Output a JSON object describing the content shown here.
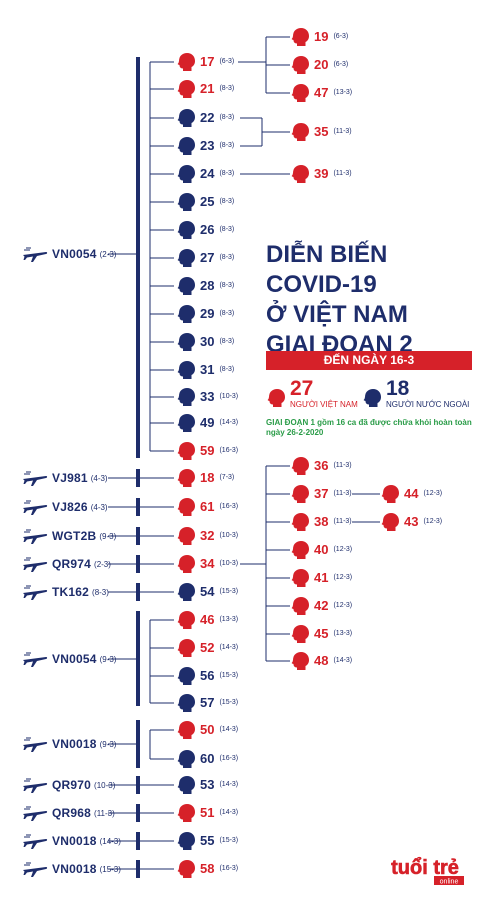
{
  "title": {
    "lines": [
      "DIỄN BIẾN",
      "COVID-19",
      "Ở VIỆT NAM",
      "GIAI ĐOẠN 2"
    ],
    "date_banner": "ĐẾN NGÀY 16-3"
  },
  "stats": {
    "vietnamese": {
      "count": "27",
      "label": "NGƯỜI VIỆT NAM"
    },
    "foreign": {
      "count": "18",
      "label": "NGƯỜI NƯỚC NGOÀI"
    }
  },
  "note": "GIAI ĐOẠN 1 gồm 16 ca đã được chữa khỏi hoàn toàn ngày 26-2-2020",
  "logo": {
    "main": "tuổi trẻ",
    "sub": "online"
  },
  "colors": {
    "vietnamese": "#d62129",
    "foreign": "#1e2d6b",
    "lines": "#1e2d6b",
    "note": "#2a9c48"
  },
  "flights": [
    {
      "code": "VN0054",
      "date": "(2-3)"
    },
    {
      "code": "VJ981",
      "date": "(4-3)"
    },
    {
      "code": "VJ826",
      "date": "(4-3)"
    },
    {
      "code": "WGT2B",
      "date": "(9-3)"
    },
    {
      "code": "QR974",
      "date": "(2-3)"
    },
    {
      "code": "TK162",
      "date": "(8-3)"
    },
    {
      "code": "VN0054",
      "date": "(9-3)"
    },
    {
      "code": "VN0018",
      "date": "(9-3)"
    },
    {
      "code": "QR970",
      "date": "(10-3)"
    },
    {
      "code": "QR968",
      "date": "(11-3)"
    },
    {
      "code": "VN0018",
      "date": "(14-3)"
    },
    {
      "code": "VN0018",
      "date": "(15-3)"
    }
  ],
  "cases": [
    {
      "id": "17",
      "date": "(6-3)",
      "type": "vn"
    },
    {
      "id": "21",
      "date": "(8-3)",
      "type": "vn"
    },
    {
      "id": "22",
      "date": "(8-3)",
      "type": "fr"
    },
    {
      "id": "23",
      "date": "(8-3)",
      "type": "fr"
    },
    {
      "id": "24",
      "date": "(8-3)",
      "type": "fr"
    },
    {
      "id": "25",
      "date": "(8-3)",
      "type": "fr"
    },
    {
      "id": "26",
      "date": "(8-3)",
      "type": "fr"
    },
    {
      "id": "27",
      "date": "(8-3)",
      "type": "fr"
    },
    {
      "id": "28",
      "date": "(8-3)",
      "type": "fr"
    },
    {
      "id": "29",
      "date": "(8-3)",
      "type": "fr"
    },
    {
      "id": "30",
      "date": "(8-3)",
      "type": "fr"
    },
    {
      "id": "31",
      "date": "(8-3)",
      "type": "fr"
    },
    {
      "id": "33",
      "date": "(10-3)",
      "type": "fr"
    },
    {
      "id": "49",
      "date": "(14-3)",
      "type": "fr"
    },
    {
      "id": "59",
      "date": "(16-3)",
      "type": "vn"
    },
    {
      "id": "19",
      "date": "(6-3)",
      "type": "vn"
    },
    {
      "id": "20",
      "date": "(6-3)",
      "type": "vn"
    },
    {
      "id": "47",
      "date": "(13-3)",
      "type": "vn"
    },
    {
      "id": "35",
      "date": "(11-3)",
      "type": "vn"
    },
    {
      "id": "39",
      "date": "(11-3)",
      "type": "vn"
    },
    {
      "id": "18",
      "date": "(7-3)",
      "type": "vn"
    },
    {
      "id": "61",
      "date": "(16-3)",
      "type": "vn"
    },
    {
      "id": "32",
      "date": "(10-3)",
      "type": "vn"
    },
    {
      "id": "34",
      "date": "(10-3)",
      "type": "vn"
    },
    {
      "id": "54",
      "date": "(15-3)",
      "type": "fr"
    },
    {
      "id": "36",
      "date": "(11-3)",
      "type": "vn"
    },
    {
      "id": "37",
      "date": "(11-3)",
      "type": "vn"
    },
    {
      "id": "38",
      "date": "(11-3)",
      "type": "vn"
    },
    {
      "id": "40",
      "date": "(12-3)",
      "type": "vn"
    },
    {
      "id": "41",
      "date": "(12-3)",
      "type": "vn"
    },
    {
      "id": "42",
      "date": "(12-3)",
      "type": "vn"
    },
    {
      "id": "45",
      "date": "(13-3)",
      "type": "vn"
    },
    {
      "id": "48",
      "date": "(14-3)",
      "type": "vn"
    },
    {
      "id": "44",
      "date": "(12-3)",
      "type": "vn"
    },
    {
      "id": "43",
      "date": "(12-3)",
      "type": "vn"
    },
    {
      "id": "46",
      "date": "(13-3)",
      "type": "vn"
    },
    {
      "id": "52",
      "date": "(14-3)",
      "type": "vn"
    },
    {
      "id": "56",
      "date": "(15-3)",
      "type": "fr"
    },
    {
      "id": "57",
      "date": "(15-3)",
      "type": "fr"
    },
    {
      "id": "50",
      "date": "(14-3)",
      "type": "vn"
    },
    {
      "id": "60",
      "date": "(16-3)",
      "type": "fr"
    },
    {
      "id": "53",
      "date": "(14-3)",
      "type": "fr"
    },
    {
      "id": "51",
      "date": "(14-3)",
      "type": "vn"
    },
    {
      "id": "55",
      "date": "(15-3)",
      "type": "fr"
    },
    {
      "id": "58",
      "date": "(16-3)",
      "type": "vn"
    }
  ]
}
